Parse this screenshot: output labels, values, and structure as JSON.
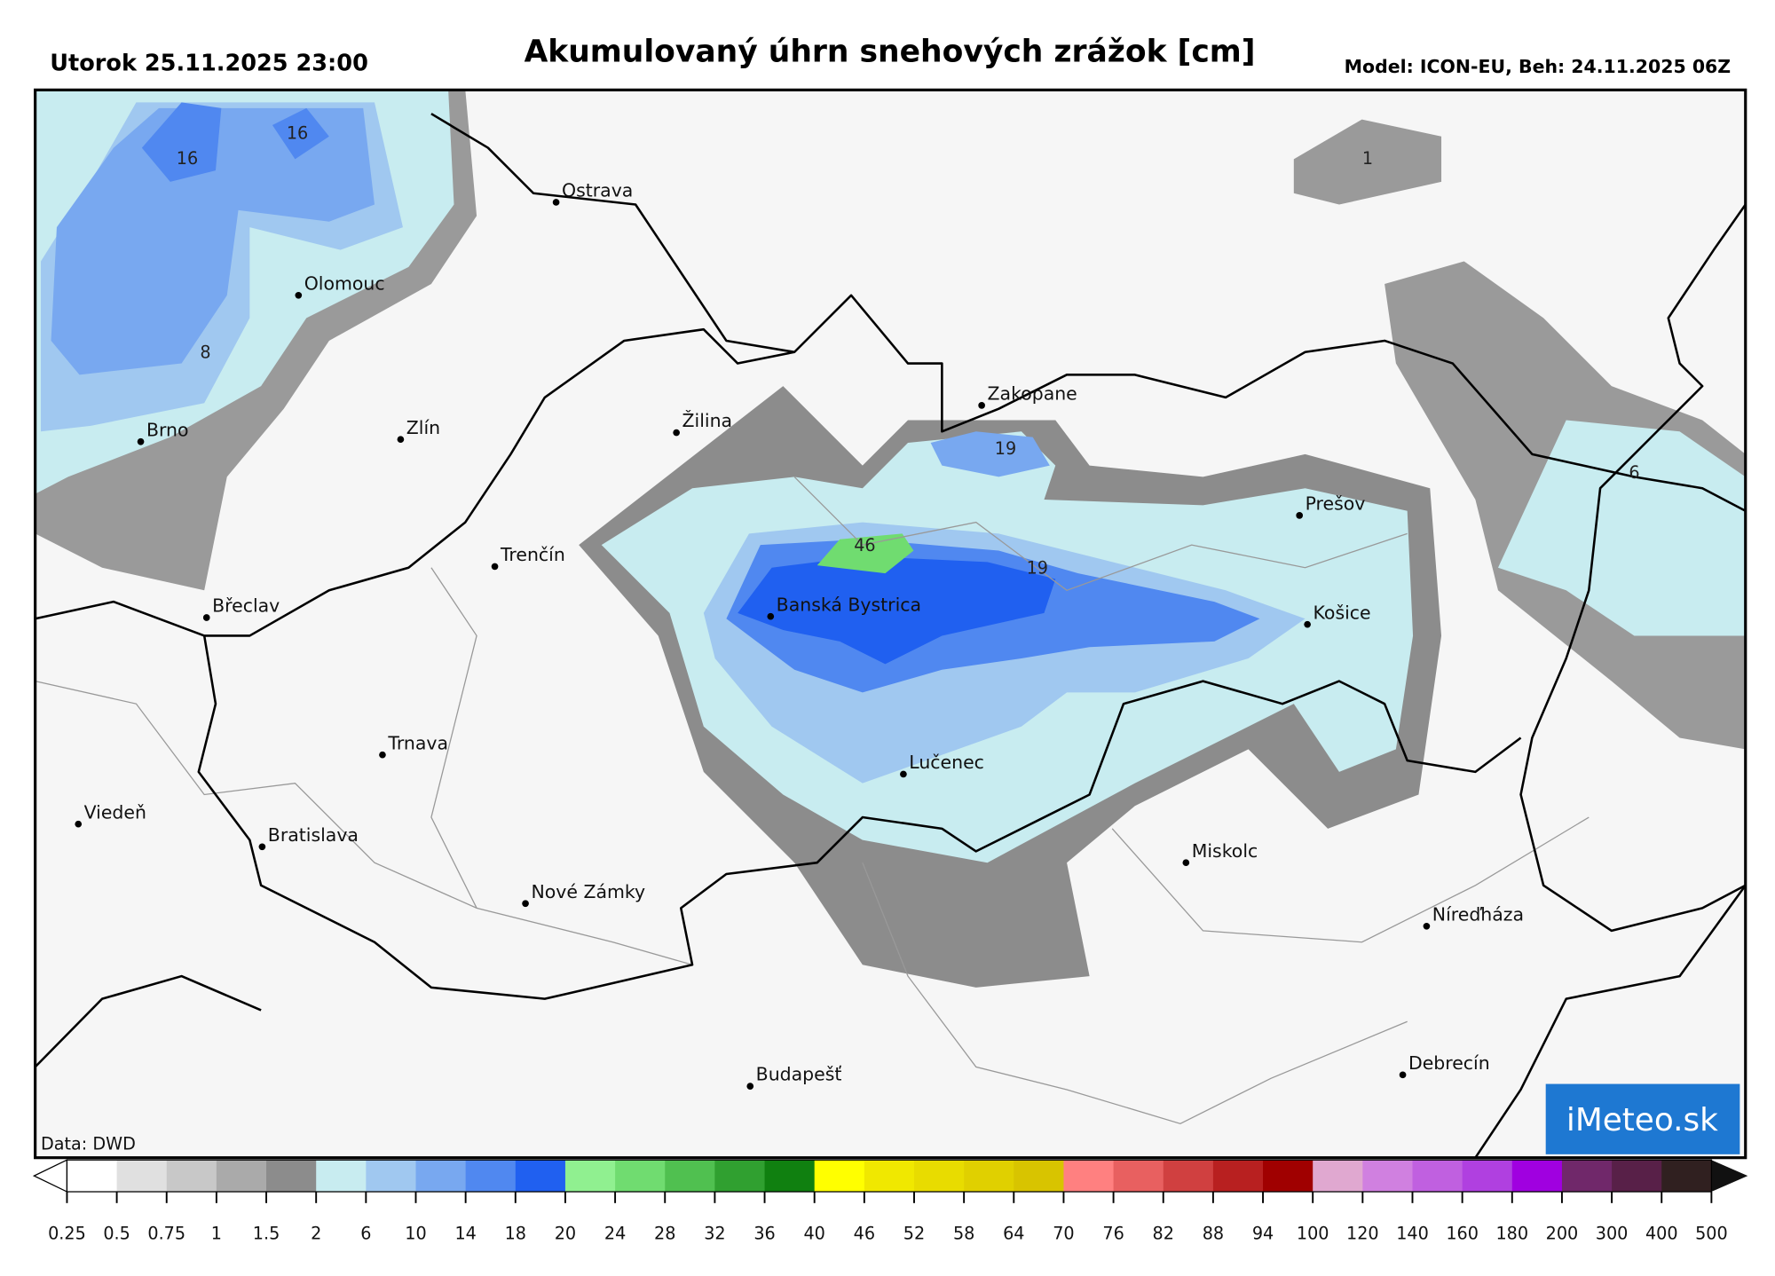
{
  "header": {
    "date": "Utorok 25.11.2025 23:00",
    "title": "Akumulovaný úhrn snehových zrážok [cm]",
    "model": "Model: ICON-EU, Beh: 24.11.2025 06Z"
  },
  "map": {
    "cities": [
      "Ostrava",
      "Olomouc",
      "Brno",
      "Zlín",
      "Žilina",
      "Zakopane",
      "Trenčín",
      "Břeclav",
      "Banská Bystrica",
      "Prešov",
      "Košice",
      "Trnava",
      "Lučenec",
      "Viedeň",
      "Bratislava",
      "Miskolc",
      "Nové Zámky",
      "Níreďháza",
      "Budapešť",
      "Debrecín"
    ],
    "contour_labels": [
      16,
      16,
      8,
      1,
      19,
      46,
      19,
      6
    ],
    "source": "Data: DWD",
    "logo": "iMeteo.sk"
  },
  "colorbar": {
    "ticks": [
      0.25,
      0.5,
      0.75,
      1,
      1.5,
      2,
      6,
      10,
      14,
      18,
      20,
      24,
      28,
      32,
      36,
      40,
      46,
      52,
      58,
      64,
      70,
      76,
      82,
      88,
      94,
      100,
      120,
      140,
      160,
      180,
      200,
      300,
      400,
      500
    ],
    "colors": [
      "#ffffff",
      "#e0e0e0",
      "#c8c8c8",
      "#aaaaaa",
      "#8c8c8c",
      "#c8ecf0",
      "#a0c8f0",
      "#78a8f0",
      "#5088f0",
      "#2060f0",
      "#90f090",
      "#70dc70",
      "#50c050",
      "#30a030",
      "#108010",
      "#ffff00",
      "#f0e800",
      "#e8dc00",
      "#e0d000",
      "#d8c400",
      "#ff8080",
      "#e86060",
      "#d04040",
      "#b82020",
      "#a00000",
      "#e0a8d0",
      "#d080e0",
      "#c060e0",
      "#b040e0",
      "#a000e0",
      "#70286a",
      "#582048",
      "#302020"
    ]
  }
}
